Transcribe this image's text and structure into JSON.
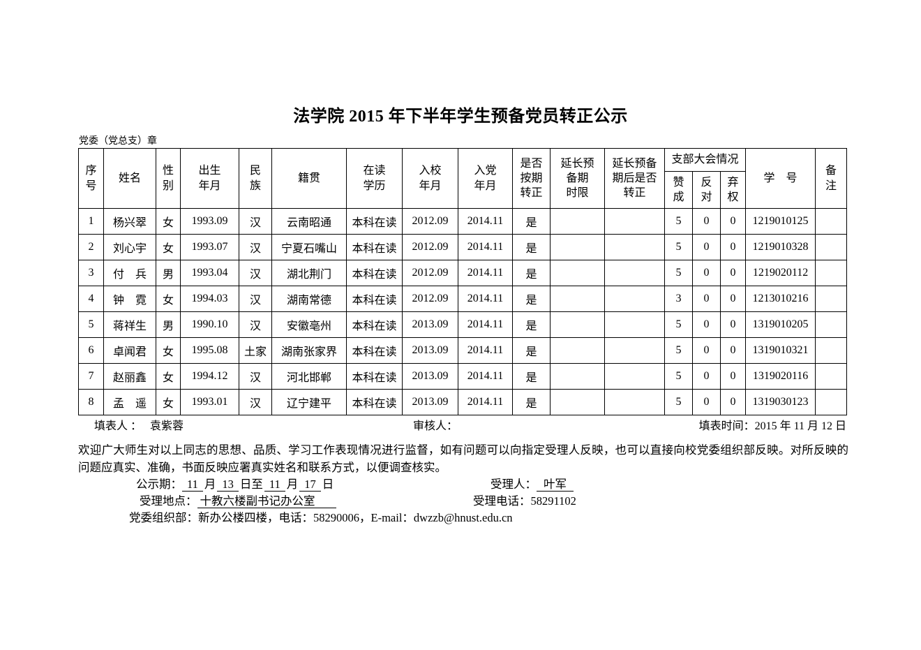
{
  "page": {
    "title": "法学院 2015 年下半年学生预备党员转正公示",
    "stamp_label": "党委（党总支）章"
  },
  "table": {
    "headers": {
      "index": "序\n号",
      "name": "姓名",
      "gender": "性\n别",
      "birth": "出生\n年月",
      "ethnicity": "民\n族",
      "native_place": "籍贯",
      "education": "在读\n学历",
      "enrollment": "入校\n年月",
      "party_join": "入党\n年月",
      "on_time": "是否\n按期\n转正",
      "extension": "延长预\n备期\n时限",
      "after_extension": "延长预备\n期后是否\n转正",
      "branch_meeting": "支部大会情况",
      "approve": "赞\n成",
      "oppose": "反\n对",
      "abstain": "弃\n权",
      "student_id": "学　号",
      "remarks": "备\n注"
    },
    "rows": [
      [
        "1",
        "杨兴翠",
        "女",
        "1993.09",
        "汉",
        "云南昭通",
        "本科在读",
        "2012.09",
        "2014.11",
        "是",
        "",
        "",
        "5",
        "0",
        "0",
        "1219010125",
        ""
      ],
      [
        "2",
        "刘心宇",
        "女",
        "1993.07",
        "汉",
        "宁夏石嘴山",
        "本科在读",
        "2012.09",
        "2014.11",
        "是",
        "",
        "",
        "5",
        "0",
        "0",
        "1219010328",
        ""
      ],
      [
        "3",
        "付　兵",
        "男",
        "1993.04",
        "汉",
        "湖北荆门",
        "本科在读",
        "2012.09",
        "2014.11",
        "是",
        "",
        "",
        "5",
        "0",
        "0",
        "1219020112",
        ""
      ],
      [
        "4",
        "钟　霓",
        "女",
        "1994.03",
        "汉",
        "湖南常德",
        "本科在读",
        "2012.09",
        "2014.11",
        "是",
        "",
        "",
        "3",
        "0",
        "0",
        "1213010216",
        ""
      ],
      [
        "5",
        "蒋祥生",
        "男",
        "1990.10",
        "汉",
        "安徽亳州",
        "本科在读",
        "2013.09",
        "2014.11",
        "是",
        "",
        "",
        "5",
        "0",
        "0",
        "1319010205",
        ""
      ],
      [
        "6",
        "卓闻君",
        "女",
        "1995.08",
        "土家",
        "湖南张家界",
        "本科在读",
        "2013.09",
        "2014.11",
        "是",
        "",
        "",
        "5",
        "0",
        "0",
        "1319010321",
        ""
      ],
      [
        "7",
        "赵丽鑫",
        "女",
        "1994.12",
        "汉",
        "河北邯郸",
        "本科在读",
        "2013.09",
        "2014.11",
        "是",
        "",
        "",
        "5",
        "0",
        "0",
        "1319020116",
        ""
      ],
      [
        "8",
        "孟　遥",
        "女",
        "1993.01",
        "汉",
        "辽宁建平",
        "本科在读",
        "2013.09",
        "2014.11",
        "是",
        "",
        "",
        "5",
        "0",
        "0",
        "1319030123",
        ""
      ]
    ]
  },
  "signature": {
    "filler_label": "填表人 ：",
    "filler_name": "袁紫蓉",
    "reviewer_label": "审核人：",
    "date_text": "填表时间：2015 年 11 月 12 日"
  },
  "notes": {
    "paragraph": "欢迎广大师生对以上同志的思想、品质、学习工作表现情况进行监督，如有问题可以向指定受理人反映，也可以直接向校党委组织部反映。对所反映的问题应真实、准确，书面反映应署真实姓名和联系方式，以便调查核实。"
  },
  "bottom": {
    "publicity": {
      "label": "公示期：",
      "month1": "11",
      "sep1": "月",
      "day1": "13",
      "sep2": "日至",
      "month2": "11",
      "sep3": "月",
      "day2": "17",
      "tail": "日"
    },
    "handler_label": "受理人：",
    "handler_name": "叶军",
    "location_label": "受理地点：",
    "location_value": "十教六楼副书记办公室",
    "phone_label": "受理电话：",
    "phone_value": "58291102",
    "org_line": "党委组织部：新办公楼四楼，电话：58290006，E-mail：dwzzb@hnust.edu.cn"
  }
}
